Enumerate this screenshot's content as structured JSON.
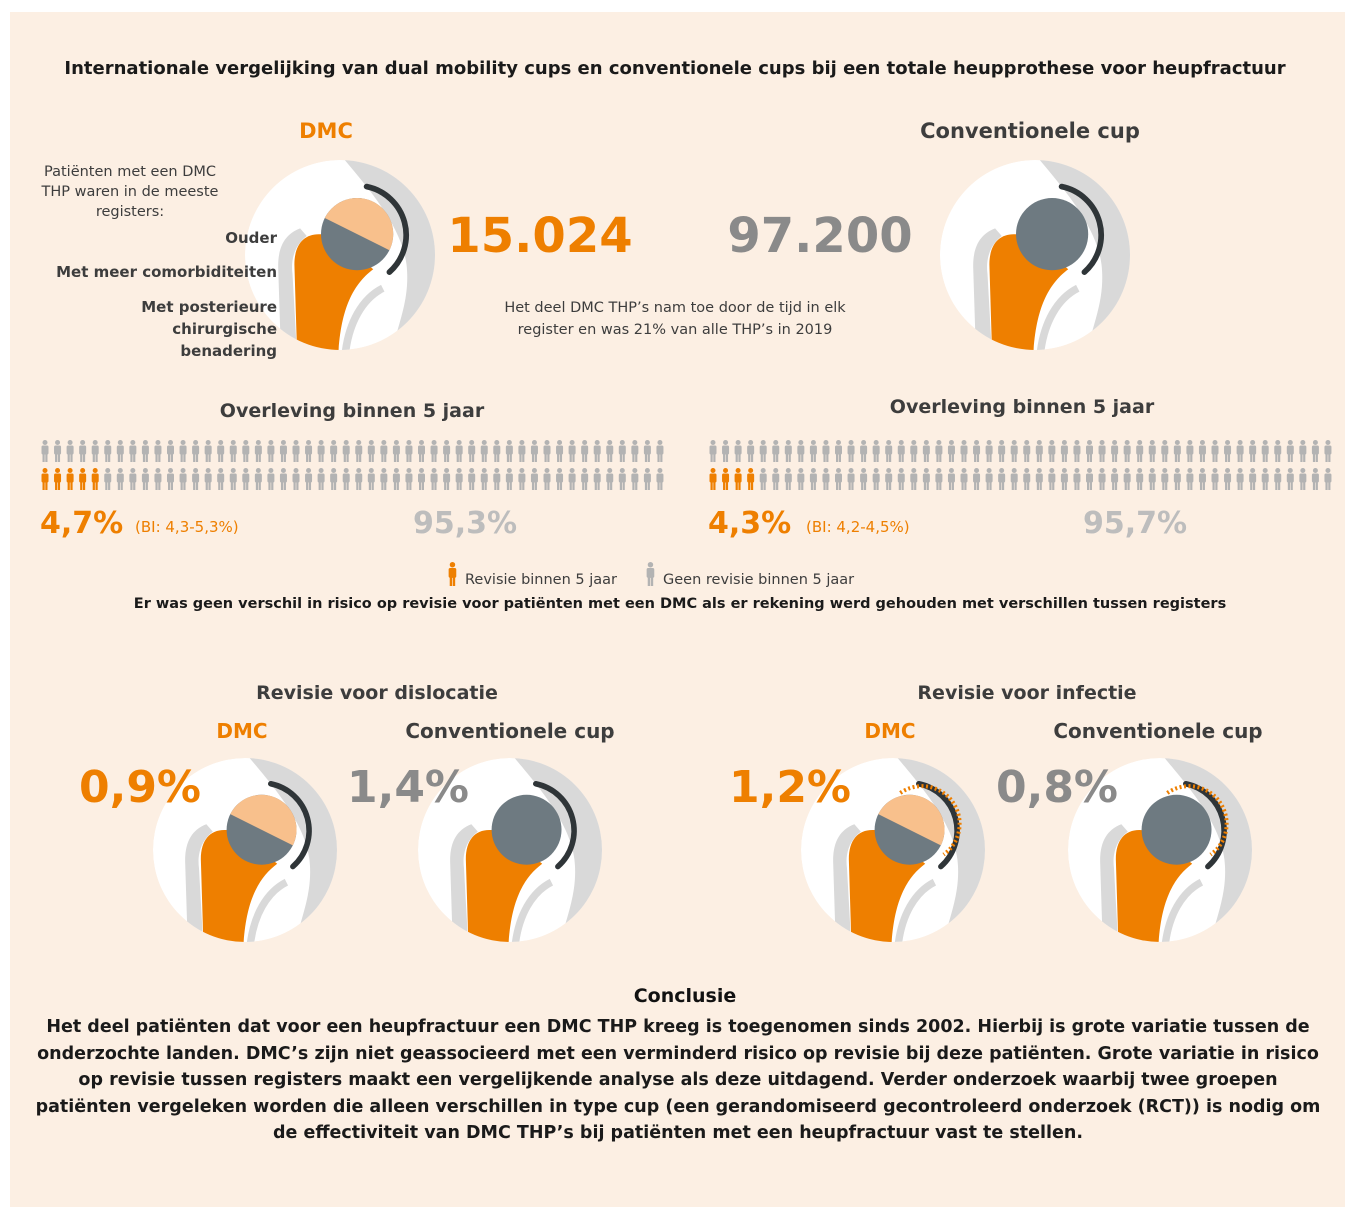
{
  "title": "Internationale vergelijking van dual mobility cups en conventionele cups bij een totale heupprothese voor heupfractuur",
  "dmc": {
    "heading": "DMC",
    "intro": "Patiënten met een DMC THP waren in de meeste registers:",
    "traits": [
      "Ouder",
      "Met meer comorbiditeiten",
      "Met posterieure chirurgische benadering"
    ],
    "count": "15.024"
  },
  "conventional": {
    "heading": "Conventionele cup",
    "count": "97.200"
  },
  "share_note": "Het deel DMC THP’s nam toe door de tijd in elk register en was 21% van alle THP’s in 2019",
  "survival": [
    {
      "heading": "Overleving binnen 5 jaar",
      "revision": "4,7%",
      "ci": "(BI: 4,3-5,3%)",
      "no_revision": "95,3%"
    },
    {
      "heading": "Overleving binnen 5 jaar",
      "revision": "4,3%",
      "ci": "(BI: 4,2-4,5%)",
      "no_revision": "95,7%"
    }
  ],
  "legend": [
    "Revisie binnen 5 jaar",
    "Geen revisie binnen 5 jaar"
  ],
  "survival_note": "Er was geen verschil in risico op revisie voor patiënten met een DMC als er rekening werd gehouden met verschillen tussen registers",
  "revision_panels": [
    {
      "heading": "Revisie voor dislocatie",
      "groups": [
        {
          "label": "DMC",
          "value": "0,9%"
        },
        {
          "label": "Conventionele cup",
          "value": "1,4%"
        }
      ]
    },
    {
      "heading": "Revisie voor infectie",
      "groups": [
        {
          "label": "DMC",
          "value": "1,2%"
        },
        {
          "label": "Conventionele cup",
          "value": "0,8%"
        }
      ]
    }
  ],
  "conclusion": {
    "heading": "Conclusie",
    "text": "Het deel patiënten dat voor een heupfractuur een DMC THP kreeg is toegenomen sinds 2002. Hierbij is grote variatie tussen de onderzochte landen. DMC’s zijn niet geassocieerd met een verminderd risico op revisie bij deze patiënten. Grote variatie in risico op revisie tussen registers maakt een vergelijkende analyse als deze uitdagend. Verder onderzoek waarbij twee groepen patiënten vergeleken worden die alleen verschillen in type cup (een gerandomiseerd gecontroleerd onderzoek (RCT)) is nodig om de effectiviteit van DMC THP’s bij patiënten met een heupfractuur vast te stellen."
  }
}
